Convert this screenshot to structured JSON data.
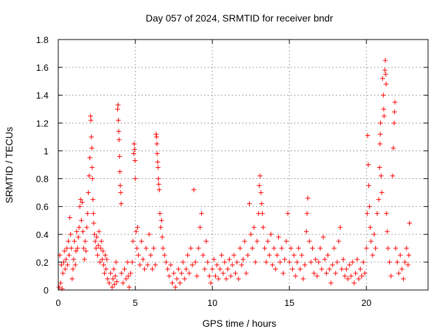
{
  "chart_data": {
    "type": "scatter",
    "title": "Day 057 of 2024, SRMTID for receiver bndr",
    "xlabel": "GPS time / hours",
    "ylabel": "SRMTID / TECUs",
    "xlim": [
      0,
      24
    ],
    "ylim": [
      0,
      1.8
    ],
    "xticks": [
      0,
      5,
      10,
      15,
      20
    ],
    "xtick_labels": [
      "0",
      "5",
      "10",
      "15",
      "20"
    ],
    "yticks": [
      0,
      0.2,
      0.4,
      0.6,
      0.8,
      1.0,
      1.2,
      1.4,
      1.6,
      1.8
    ],
    "ytick_labels": [
      "0",
      "0.2",
      "0.4",
      "0.6",
      "0.8",
      "1",
      "1.2",
      "1.4",
      "1.6",
      "1.8"
    ],
    "grid": true,
    "marker": "+",
    "series_color": "#ff0000",
    "series": [
      {
        "name": "SRMTID",
        "points": [
          [
            0.05,
            0.02
          ],
          [
            0.1,
            0.25
          ],
          [
            0.15,
            0.05
          ],
          [
            0.2,
            0.18
          ],
          [
            0.25,
            0.01
          ],
          [
            0.3,
            0.12
          ],
          [
            0.35,
            0.2
          ],
          [
            0.4,
            0.28
          ],
          [
            0.45,
            0.15
          ],
          [
            0.5,
            0.22
          ],
          [
            0.55,
            0.3
          ],
          [
            0.6,
            0.18
          ],
          [
            0.65,
            0.35
          ],
          [
            0.7,
            0.25
          ],
          [
            0.75,
            0.52
          ],
          [
            0.8,
            0.4
          ],
          [
            0.85,
            0.3
          ],
          [
            0.9,
            0.08
          ],
          [
            0.95,
            0.15
          ],
          [
            1.0,
            0.22
          ],
          [
            1.05,
            0.35
          ],
          [
            1.1,
            0.18
          ],
          [
            1.15,
            0.28
          ],
          [
            1.2,
            0.42
          ],
          [
            1.25,
            0.3
          ],
          [
            1.3,
            0.38
          ],
          [
            1.35,
            0.45
          ],
          [
            1.4,
            0.6
          ],
          [
            1.45,
            0.65
          ],
          [
            1.5,
            0.5
          ],
          [
            1.55,
            0.63
          ],
          [
            1.6,
            0.42
          ],
          [
            1.65,
            0.3
          ],
          [
            1.7,
            0.22
          ],
          [
            1.75,
            0.35
          ],
          [
            1.8,
            0.28
          ],
          [
            1.85,
            0.45
          ],
          [
            1.9,
            0.55
          ],
          [
            1.95,
            0.7
          ],
          [
            2.0,
            0.82
          ],
          [
            2.05,
            0.95
          ],
          [
            2.1,
            1.25
          ],
          [
            2.12,
            1.22
          ],
          [
            2.15,
            1.1
          ],
          [
            2.18,
            1.02
          ],
          [
            2.2,
            0.88
          ],
          [
            2.22,
            0.8
          ],
          [
            2.25,
            0.65
          ],
          [
            2.28,
            0.55
          ],
          [
            2.3,
            0.48
          ],
          [
            2.35,
            0.4
          ],
          [
            2.4,
            0.35
          ],
          [
            2.45,
            0.3
          ],
          [
            2.5,
            0.38
          ],
          [
            2.55,
            0.25
          ],
          [
            2.6,
            0.32
          ],
          [
            2.65,
            0.42
          ],
          [
            2.7,
            0.2
          ],
          [
            2.75,
            0.3
          ],
          [
            2.8,
            0.35
          ],
          [
            2.85,
            0.22
          ],
          [
            2.9,
            0.28
          ],
          [
            2.95,
            0.18
          ],
          [
            3.0,
            0.12
          ],
          [
            3.05,
            0.25
          ],
          [
            3.1,
            0.15
          ],
          [
            3.15,
            0.22
          ],
          [
            3.2,
            0.08
          ],
          [
            3.3,
            0.05
          ],
          [
            3.4,
            0.12
          ],
          [
            3.5,
            0.02
          ],
          [
            3.55,
            0.08
          ],
          [
            3.6,
            0.15
          ],
          [
            3.65,
            0.04
          ],
          [
            3.7,
            0.1
          ],
          [
            3.75,
            0.2
          ],
          [
            3.8,
            0.06
          ],
          [
            3.85,
            1.3
          ],
          [
            3.88,
            1.33
          ],
          [
            3.9,
            1.22
          ],
          [
            3.92,
            1.14
          ],
          [
            3.95,
            1.08
          ],
          [
            3.98,
            0.96
          ],
          [
            4.0,
            0.85
          ],
          [
            4.02,
            0.75
          ],
          [
            4.05,
            0.7
          ],
          [
            4.08,
            0.62
          ],
          [
            4.1,
            0.12
          ],
          [
            4.2,
            0.05
          ],
          [
            4.3,
            0.15
          ],
          [
            4.4,
            0.08
          ],
          [
            4.5,
            0.2
          ],
          [
            4.55,
            0.1
          ],
          [
            4.6,
            0.02
          ],
          [
            4.7,
            0.12
          ],
          [
            4.8,
            0.2
          ],
          [
            4.85,
            0.35
          ],
          [
            4.9,
            0.98
          ],
          [
            4.92,
            1.05
          ],
          [
            4.95,
            1.01
          ],
          [
            4.98,
            0.93
          ],
          [
            5.0,
            0.8
          ],
          [
            5.05,
            0.42
          ],
          [
            5.1,
            0.3
          ],
          [
            5.15,
            0.45
          ],
          [
            5.2,
            0.25
          ],
          [
            5.3,
            0.18
          ],
          [
            5.4,
            0.35
          ],
          [
            5.5,
            0.22
          ],
          [
            5.6,
            0.15
          ],
          [
            5.7,
            0.3
          ],
          [
            5.8,
            0.18
          ],
          [
            5.9,
            0.4
          ],
          [
            6.0,
            0.25
          ],
          [
            6.1,
            0.15
          ],
          [
            6.2,
            0.3
          ],
          [
            6.3,
            0.18
          ],
          [
            6.35,
            1.12
          ],
          [
            6.38,
            1.1
          ],
          [
            6.4,
            1.05
          ],
          [
            6.42,
            0.98
          ],
          [
            6.45,
            0.92
          ],
          [
            6.48,
            0.88
          ],
          [
            6.5,
            0.8
          ],
          [
            6.52,
            0.76
          ],
          [
            6.55,
            0.72
          ],
          [
            6.6,
            0.55
          ],
          [
            6.65,
            0.45
          ],
          [
            6.7,
            0.5
          ],
          [
            6.75,
            0.38
          ],
          [
            6.8,
            0.3
          ],
          [
            6.9,
            0.25
          ],
          [
            7.0,
            0.2
          ],
          [
            7.1,
            0.15
          ],
          [
            7.2,
            0.1
          ],
          [
            7.3,
            0.18
          ],
          [
            7.4,
            0.05
          ],
          [
            7.5,
            0.12
          ],
          [
            7.6,
            0.02
          ],
          [
            7.7,
            0.08
          ],
          [
            7.8,
            0.15
          ],
          [
            7.9,
            0.05
          ],
          [
            8.0,
            0.12
          ],
          [
            8.1,
            0.2
          ],
          [
            8.2,
            0.08
          ],
          [
            8.3,
            0.15
          ],
          [
            8.4,
            0.25
          ],
          [
            8.5,
            0.12
          ],
          [
            8.6,
            0.3
          ],
          [
            8.7,
            0.18
          ],
          [
            8.8,
            0.72
          ],
          [
            8.9,
            0.2
          ],
          [
            9.0,
            0.1
          ],
          [
            9.1,
            0.3
          ],
          [
            9.2,
            0.45
          ],
          [
            9.3,
            0.55
          ],
          [
            9.4,
            0.25
          ],
          [
            9.5,
            0.15
          ],
          [
            9.6,
            0.35
          ],
          [
            9.7,
            0.2
          ],
          [
            9.8,
            0.1
          ],
          [
            9.9,
            0.05
          ],
          [
            10.0,
            0.15
          ],
          [
            10.1,
            0.22
          ],
          [
            10.2,
            0.1
          ],
          [
            10.3,
            0.18
          ],
          [
            10.4,
            0.08
          ],
          [
            10.5,
            0.15
          ],
          [
            10.6,
            0.25
          ],
          [
            10.7,
            0.12
          ],
          [
            10.8,
            0.2
          ],
          [
            10.9,
            0.08
          ],
          [
            11.0,
            0.15
          ],
          [
            11.1,
            0.22
          ],
          [
            11.2,
            0.1
          ],
          [
            11.3,
            0.18
          ],
          [
            11.4,
            0.25
          ],
          [
            11.5,
            0.12
          ],
          [
            11.6,
            0.2
          ],
          [
            11.7,
            0.08
          ],
          [
            11.8,
            0.3
          ],
          [
            11.9,
            0.18
          ],
          [
            12.0,
            0.22
          ],
          [
            12.1,
            0.35
          ],
          [
            12.2,
            0.12
          ],
          [
            12.3,
            0.25
          ],
          [
            12.4,
            0.62
          ],
          [
            12.5,
            0.4
          ],
          [
            12.6,
            0.3
          ],
          [
            12.7,
            0.45
          ],
          [
            12.8,
            0.2
          ],
          [
            12.9,
            0.35
          ],
          [
            13.0,
            0.55
          ],
          [
            13.05,
            0.75
          ],
          [
            13.1,
            0.82
          ],
          [
            13.15,
            0.7
          ],
          [
            13.2,
            0.62
          ],
          [
            13.25,
            0.55
          ],
          [
            13.3,
            0.45
          ],
          [
            13.4,
            0.3
          ],
          [
            13.5,
            0.2
          ],
          [
            13.6,
            0.35
          ],
          [
            13.7,
            0.25
          ],
          [
            13.8,
            0.4
          ],
          [
            13.9,
            0.18
          ],
          [
            14.0,
            0.3
          ],
          [
            14.1,
            0.15
          ],
          [
            14.2,
            0.25
          ],
          [
            14.3,
            0.38
          ],
          [
            14.4,
            0.2
          ],
          [
            14.5,
            0.3
          ],
          [
            14.6,
            0.12
          ],
          [
            14.7,
            0.22
          ],
          [
            14.8,
            0.35
          ],
          [
            14.9,
            0.55
          ],
          [
            15.0,
            0.2
          ],
          [
            15.1,
            0.3
          ],
          [
            15.2,
            0.15
          ],
          [
            15.3,
            0.25
          ],
          [
            15.4,
            0.1
          ],
          [
            15.5,
            0.2
          ],
          [
            15.6,
            0.3
          ],
          [
            15.7,
            0.15
          ],
          [
            15.8,
            0.25
          ],
          [
            15.9,
            0.08
          ],
          [
            16.0,
            0.18
          ],
          [
            16.1,
            0.42
          ],
          [
            16.15,
            0.55
          ],
          [
            16.2,
            0.66
          ],
          [
            16.3,
            0.35
          ],
          [
            16.4,
            0.2
          ],
          [
            16.5,
            0.3
          ],
          [
            16.6,
            0.12
          ],
          [
            16.7,
            0.22
          ],
          [
            16.8,
            0.1
          ],
          [
            16.9,
            0.2
          ],
          [
            17.0,
            0.3
          ],
          [
            17.1,
            0.15
          ],
          [
            17.2,
            0.38
          ],
          [
            17.3,
            0.22
          ],
          [
            17.4,
            0.12
          ],
          [
            17.5,
            0.25
          ],
          [
            17.6,
            0.15
          ],
          [
            17.7,
            0.05
          ],
          [
            17.8,
            0.18
          ],
          [
            17.9,
            0.3
          ],
          [
            18.0,
            0.12
          ],
          [
            18.1,
            0.2
          ],
          [
            18.2,
            0.35
          ],
          [
            18.3,
            0.45
          ],
          [
            18.4,
            0.15
          ],
          [
            18.5,
            0.22
          ],
          [
            18.6,
            0.1
          ],
          [
            18.7,
            0.15
          ],
          [
            18.8,
            0.08
          ],
          [
            18.9,
            0.18
          ],
          [
            19.0,
            0.1
          ],
          [
            19.1,
            0.2
          ],
          [
            19.2,
            0.05
          ],
          [
            19.3,
            0.12
          ],
          [
            19.4,
            0.22
          ],
          [
            19.5,
            0.08
          ],
          [
            19.6,
            0.15
          ],
          [
            19.7,
            0.1
          ],
          [
            19.8,
            0.2
          ],
          [
            19.9,
            0.12
          ],
          [
            20.0,
            0.3
          ],
          [
            20.05,
            0.55
          ],
          [
            20.08,
            1.11
          ],
          [
            20.12,
            0.9
          ],
          [
            20.15,
            0.75
          ],
          [
            20.2,
            0.6
          ],
          [
            20.25,
            0.45
          ],
          [
            20.3,
            0.35
          ],
          [
            20.4,
            0.25
          ],
          [
            20.5,
            0.4
          ],
          [
            20.6,
            0.3
          ],
          [
            20.7,
            0.55
          ],
          [
            20.8,
            0.65
          ],
          [
            20.85,
            0.88
          ],
          [
            20.88,
            1.05
          ],
          [
            20.9,
            1.12
          ],
          [
            20.92,
            1.2
          ],
          [
            20.95,
            0.82
          ],
          [
            21.0,
            0.7
          ],
          [
            21.05,
            1.52
          ],
          [
            21.1,
            1.4
          ],
          [
            21.12,
            1.3
          ],
          [
            21.15,
            1.25
          ],
          [
            21.2,
            1.58
          ],
          [
            21.22,
            1.65
          ],
          [
            21.25,
            1.55
          ],
          [
            21.28,
            1.48
          ],
          [
            21.3,
            0.55
          ],
          [
            21.35,
            0.42
          ],
          [
            21.4,
            0.3
          ],
          [
            21.5,
            0.2
          ],
          [
            21.6,
            0.1
          ],
          [
            21.7,
            0.82
          ],
          [
            21.75,
            1.02
          ],
          [
            21.8,
            1.2
          ],
          [
            21.82,
            1.28
          ],
          [
            21.85,
            1.35
          ],
          [
            21.9,
            0.3
          ],
          [
            22.0,
            0.2
          ],
          [
            22.1,
            0.12
          ],
          [
            22.2,
            0.25
          ],
          [
            22.3,
            0.15
          ],
          [
            22.4,
            0.08
          ],
          [
            22.5,
            0.2
          ],
          [
            22.6,
            0.3
          ],
          [
            22.7,
            0.18
          ],
          [
            22.75,
            0.25
          ],
          [
            22.8,
            0.48
          ]
        ]
      }
    ]
  }
}
